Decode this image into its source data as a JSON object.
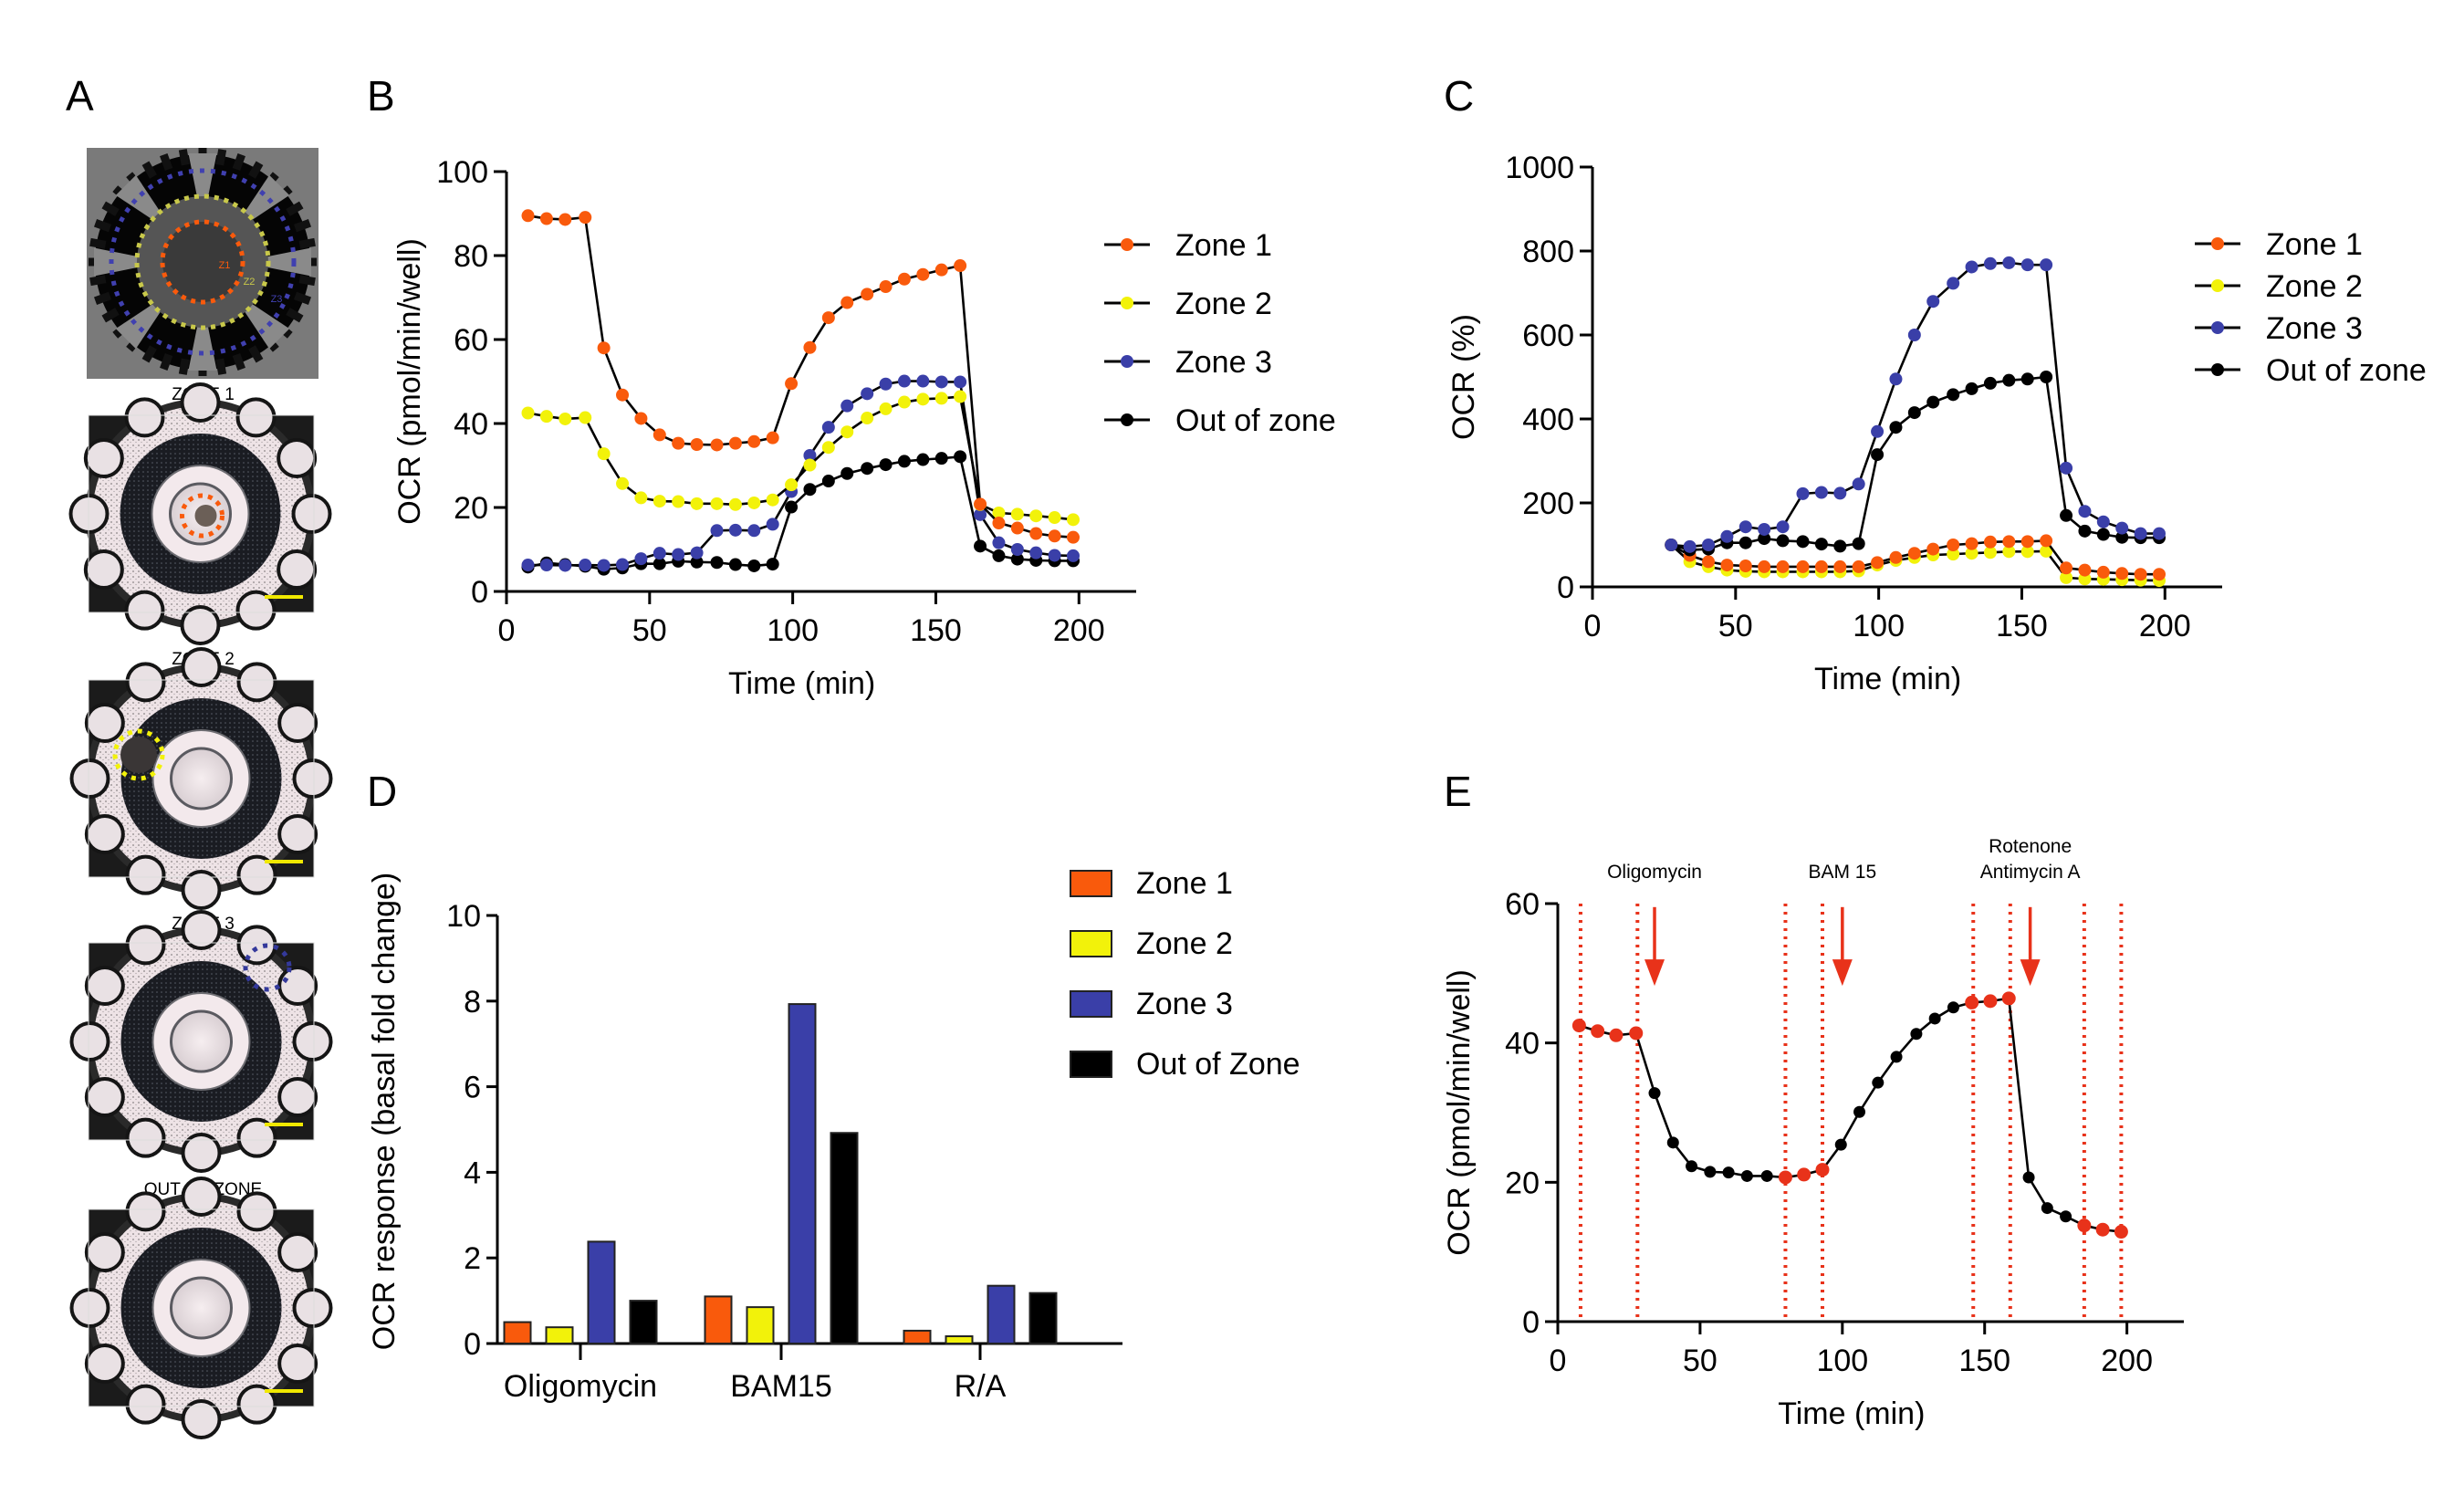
{
  "panels": {
    "A": {
      "label": "A",
      "captions": [
        "ZONE 1",
        "ZONE 2",
        "ZONE 3",
        "OUT OF ZONE"
      ],
      "diagram_zone_labels": [
        "Z1",
        "Z2",
        "Z3"
      ]
    },
    "B": {
      "label": "B"
    },
    "C": {
      "label": "C"
    },
    "D": {
      "label": "D"
    },
    "E": {
      "label": "E"
    }
  },
  "colors": {
    "zone1": "#f95a0c",
    "zone2": "#f2f20a",
    "zone3": "#3a3fa8",
    "out": "#000000",
    "annotation_red": "#e8321a",
    "scale_bar": "#f0e800"
  },
  "chart_data": [
    {
      "id": "B",
      "type": "line",
      "title": "",
      "xlabel": "Time (min)",
      "ylabel": "OCR (pmol/min/well)",
      "xlim": [
        0,
        220
      ],
      "ylim": [
        0,
        100
      ],
      "xticks": [
        0,
        50,
        100,
        150,
        200
      ],
      "yticks": [
        0,
        20,
        40,
        60,
        80,
        100
      ],
      "legend_position": "right",
      "x": [
        7.5,
        14,
        20.5,
        27.5,
        34,
        40.5,
        47,
        53.5,
        60,
        66.5,
        73.5,
        80,
        86.5,
        93,
        99.5,
        106,
        112.5,
        119,
        126,
        132.5,
        139,
        145.5,
        152,
        158.5,
        165.5,
        172,
        178.5,
        185,
        191.5,
        198
      ],
      "series": [
        {
          "name": "Zone 1",
          "color_key": "zone1",
          "values": [
            89.5,
            88.8,
            88.6,
            89.1,
            58,
            46.8,
            41.2,
            37.3,
            35.3,
            35,
            34.9,
            35.3,
            35.7,
            36.6,
            49.5,
            58.1,
            65.2,
            68.8,
            70.8,
            72.6,
            74.4,
            75.5,
            76.6,
            77.6,
            20.8,
            16.3,
            15.1,
            13.8,
            13.2,
            12.9
          ]
        },
        {
          "name": "Zone 2",
          "color_key": "zone2",
          "values": [
            42.5,
            41.7,
            41.1,
            41.4,
            32.8,
            25.7,
            22.3,
            21.5,
            21.4,
            20.9,
            20.9,
            20.7,
            21.1,
            21.8,
            25.4,
            30.1,
            34.3,
            38,
            41.3,
            43.5,
            45.1,
            45.8,
            46,
            46.4,
            20.7,
            18.7,
            18.4,
            18,
            17.6,
            17.1
          ]
        },
        {
          "name": "Zone 3",
          "color_key": "zone3",
          "values": [
            6.3,
            6.3,
            6.2,
            6.3,
            6.2,
            6.4,
            7.8,
            9.1,
            8.8,
            9.2,
            14.5,
            14.6,
            14.5,
            16,
            23.8,
            32.4,
            39.1,
            44.2,
            47.1,
            49.4,
            50.1,
            50.1,
            49.9,
            49.9,
            18.3,
            11.6,
            10,
            9.2,
            8.6,
            8.5
          ]
        },
        {
          "name": "Out of zone",
          "color_key": "out",
          "values": [
            5.8,
            6.8,
            6.4,
            6,
            5.3,
            5.6,
            6.6,
            6.6,
            7.2,
            7,
            6.9,
            6.4,
            6.1,
            6.5,
            20.1,
            24.3,
            26.3,
            28.1,
            29.3,
            30.2,
            31,
            31.4,
            31.7,
            32.1,
            10.8,
            8.5,
            7.7,
            7.4,
            7.3,
            7.3
          ]
        }
      ]
    },
    {
      "id": "C",
      "type": "line",
      "title": "",
      "xlabel": "Time (min)",
      "ylabel": "OCR (%)",
      "xlim": [
        0,
        220
      ],
      "ylim": [
        0,
        1000
      ],
      "xticks": [
        0,
        50,
        100,
        150,
        200
      ],
      "yticks": [
        0,
        200,
        400,
        600,
        800,
        1000
      ],
      "legend_position": "right",
      "x": [
        27.5,
        34,
        40.5,
        47,
        53.5,
        60,
        66.5,
        73.5,
        80,
        86.5,
        93,
        99.5,
        106,
        112.5,
        119,
        126,
        132.5,
        139,
        145.5,
        152,
        158.5,
        165.5,
        172,
        178.5,
        185,
        191.5,
        198
      ],
      "series": [
        {
          "name": "Zone 1",
          "color_key": "zone1",
          "values": [
            100,
            75,
            60,
            52,
            50,
            48,
            48,
            48,
            48,
            48,
            48,
            58,
            70,
            80,
            90,
            100,
            103,
            107,
            108,
            108,
            110,
            45,
            40,
            35,
            32,
            30,
            30
          ]
        },
        {
          "name": "Zone 2",
          "color_key": "zone2",
          "values": [
            100,
            60,
            48,
            40,
            37,
            36,
            36,
            36,
            36,
            36,
            38,
            52,
            63,
            70,
            76,
            78,
            80,
            82,
            84,
            84,
            85,
            22,
            19,
            18,
            17,
            16,
            15
          ]
        },
        {
          "name": "Zone 3",
          "color_key": "zone3",
          "values": [
            100,
            96,
            100,
            120,
            143,
            137,
            143,
            222,
            225,
            223,
            245,
            370,
            495,
            600,
            680,
            723,
            762,
            770,
            772,
            767,
            767,
            283,
            180,
            155,
            140,
            127,
            127
          ]
        },
        {
          "name": "Out of zone",
          "color_key": "out",
          "values": [
            100,
            88,
            90,
            105,
            105,
            115,
            110,
            108,
            102,
            97,
            103,
            315,
            380,
            415,
            440,
            458,
            472,
            485,
            492,
            495,
            500,
            170,
            133,
            125,
            118,
            117,
            117
          ]
        }
      ]
    },
    {
      "id": "D",
      "type": "bar",
      "title": "",
      "xlabel": "",
      "ylabel": "OCR response (basal fold change)",
      "ylim": [
        0,
        10
      ],
      "yticks": [
        0,
        2,
        4,
        6,
        8,
        10
      ],
      "legend_position": "right",
      "categories": [
        "Oligomycin",
        "BAM15",
        "R/A"
      ],
      "series": [
        {
          "name": "Zone 1",
          "color_key": "zone1",
          "values": [
            0.5,
            1.1,
            0.3
          ]
        },
        {
          "name": "Zone 2",
          "color_key": "zone2",
          "values": [
            0.38,
            0.85,
            0.17
          ]
        },
        {
          "name": "Zone 3",
          "color_key": "zone3",
          "values": [
            2.38,
            7.93,
            1.35
          ]
        },
        {
          "name": "Out of Zone",
          "color_key": "out",
          "values": [
            1.0,
            4.92,
            1.18
          ]
        }
      ]
    },
    {
      "id": "E",
      "type": "line",
      "title": "",
      "xlabel": "Time (min)",
      "ylabel": "OCR (pmol/min/well)",
      "xlim": [
        0,
        220
      ],
      "ylim": [
        0,
        60
      ],
      "xticks": [
        0,
        50,
        100,
        150,
        200
      ],
      "yticks": [
        0,
        20,
        40,
        60
      ],
      "x": [
        7.5,
        14,
        20.5,
        27.5,
        34,
        40.5,
        47,
        53.5,
        60,
        66.5,
        73.5,
        80,
        86.5,
        93,
        99.5,
        106,
        112.5,
        119,
        126,
        132.5,
        139,
        145.5,
        152,
        158.5,
        165.5,
        172,
        178.5,
        185,
        191.5,
        198
      ],
      "values": [
        42.5,
        41.7,
        41.1,
        41.4,
        32.8,
        25.7,
        22.3,
        21.5,
        21.4,
        20.9,
        20.9,
        20.7,
        21.1,
        21.8,
        25.4,
        30.1,
        34.3,
        38,
        41.3,
        43.5,
        45.1,
        45.8,
        46,
        46.4,
        20.7,
        16.3,
        15.1,
        13.8,
        13.2,
        12.9
      ],
      "highlighted_indices": [
        0,
        1,
        2,
        3,
        11,
        12,
        13,
        21,
        22,
        23,
        27,
        28,
        29
      ],
      "dashed_lines_x": [
        8,
        28,
        80,
        93,
        146,
        159,
        185,
        198
      ],
      "injections": [
        {
          "label": [
            "Oligomycin"
          ],
          "x": 34
        },
        {
          "label": [
            "BAM 15"
          ],
          "x": 100
        },
        {
          "label": [
            "Rotenone",
            "Antimycin A"
          ],
          "x": 166
        }
      ]
    }
  ]
}
